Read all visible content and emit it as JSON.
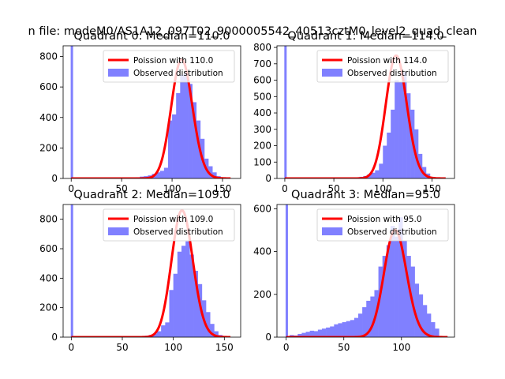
{
  "figure": {
    "suptitle": "n file: modeM0/AS1A12_097T02_9000005542_40513cztM0_level2_quad_clean"
  },
  "colors": {
    "hist": "#8080ff",
    "poisson": "#ff0000",
    "axis": "#000000",
    "background": "#ffffff"
  },
  "chart_data": [
    {
      "type": "bar",
      "title": "Quadrant 0: Median=110.0",
      "xlim": [
        -8,
        168
      ],
      "ylim": [
        0,
        870
      ],
      "xticks": [
        0,
        50,
        100,
        150
      ],
      "yticks": [
        0,
        200,
        400,
        600,
        800
      ],
      "legend": [
        "Poission with 110.0",
        "Observed distribution"
      ],
      "legend_position": "upper-right",
      "bin_width": 4,
      "spike": {
        "x": 0,
        "value": 870
      },
      "bins": [
        [
          60,
          3
        ],
        [
          64,
          8
        ],
        [
          68,
          12
        ],
        [
          72,
          15
        ],
        [
          76,
          20
        ],
        [
          80,
          30
        ],
        [
          84,
          40
        ],
        [
          88,
          50
        ],
        [
          92,
          70
        ],
        [
          96,
          380
        ],
        [
          100,
          420
        ],
        [
          104,
          560
        ],
        [
          108,
          680
        ],
        [
          112,
          690
        ],
        [
          116,
          620
        ],
        [
          120,
          500
        ],
        [
          124,
          380
        ],
        [
          128,
          260
        ],
        [
          132,
          130
        ],
        [
          136,
          80
        ],
        [
          140,
          40
        ],
        [
          144,
          15
        ],
        [
          148,
          5
        ]
      ],
      "poisson_lambda": 110.0,
      "poisson_peak": 780,
      "poisson_xmax": 158
    },
    {
      "type": "bar",
      "title": "Quadrant 1: Median=114.0",
      "xlim": [
        -8,
        173
      ],
      "ylim": [
        0,
        810
      ],
      "xticks": [
        0,
        50,
        100,
        150
      ],
      "yticks": [
        0,
        100,
        200,
        300,
        400,
        500,
        600,
        700,
        800
      ],
      "legend": [
        "Poission with 114.0",
        "Observed distribution"
      ],
      "legend_position": "upper-right",
      "bin_width": 4,
      "spike": {
        "x": 0,
        "value": 810
      },
      "bins": [
        [
          72,
          5
        ],
        [
          76,
          10
        ],
        [
          80,
          15
        ],
        [
          84,
          25
        ],
        [
          88,
          35
        ],
        [
          92,
          50
        ],
        [
          96,
          90
        ],
        [
          100,
          200
        ],
        [
          104,
          280
        ],
        [
          108,
          420
        ],
        [
          112,
          600
        ],
        [
          116,
          590
        ],
        [
          120,
          650
        ],
        [
          124,
          520
        ],
        [
          128,
          420
        ],
        [
          132,
          300
        ],
        [
          136,
          150
        ],
        [
          140,
          70
        ],
        [
          144,
          30
        ],
        [
          148,
          10
        ],
        [
          152,
          5
        ]
      ],
      "poisson_lambda": 114.0,
      "poisson_peak": 750,
      "poisson_xmax": 164
    },
    {
      "type": "bar",
      "title": "Quadrant 2: Median=109.0",
      "xlim": [
        -8,
        166
      ],
      "ylim": [
        0,
        900
      ],
      "xticks": [
        0,
        50,
        100,
        150
      ],
      "yticks": [
        0,
        200,
        400,
        600,
        800
      ],
      "legend": [
        "Poission with 109.0",
        "Observed distribution"
      ],
      "legend_position": "upper-right",
      "bin_width": 4,
      "spike": {
        "x": 0,
        "value": 900
      },
      "bins": [
        [
          64,
          3
        ],
        [
          68,
          5
        ],
        [
          72,
          10
        ],
        [
          76,
          15
        ],
        [
          80,
          25
        ],
        [
          84,
          40
        ],
        [
          88,
          80
        ],
        [
          92,
          100
        ],
        [
          96,
          320
        ],
        [
          100,
          430
        ],
        [
          104,
          580
        ],
        [
          108,
          620
        ],
        [
          112,
          650
        ],
        [
          116,
          560
        ],
        [
          120,
          450
        ],
        [
          124,
          360
        ],
        [
          128,
          250
        ],
        [
          132,
          170
        ],
        [
          136,
          90
        ],
        [
          140,
          40
        ],
        [
          144,
          15
        ],
        [
          148,
          5
        ]
      ],
      "poisson_lambda": 109.0,
      "poisson_peak": 860,
      "poisson_xmax": 156
    },
    {
      "type": "bar",
      "title": "Quadrant 3: Median=95.0",
      "xlim": [
        -8,
        146
      ],
      "ylim": [
        0,
        620
      ],
      "xticks": [
        0,
        50,
        100
      ],
      "yticks": [
        0,
        200,
        400,
        600
      ],
      "legend": [
        "Poission with 95.0",
        "Observed distribution"
      ],
      "legend_position": "upper-right",
      "bin_width": 3.5,
      "spike": {
        "x": 0,
        "value": 620
      },
      "bins": [
        [
          3,
          10
        ],
        [
          6.5,
          8
        ],
        [
          10,
          15
        ],
        [
          13.5,
          20
        ],
        [
          17,
          25
        ],
        [
          20.5,
          30
        ],
        [
          24,
          28
        ],
        [
          27.5,
          35
        ],
        [
          31,
          40
        ],
        [
          34.5,
          45
        ],
        [
          38,
          50
        ],
        [
          41.5,
          60
        ],
        [
          45,
          65
        ],
        [
          48.5,
          70
        ],
        [
          52,
          75
        ],
        [
          55.5,
          80
        ],
        [
          59,
          90
        ],
        [
          62.5,
          110
        ],
        [
          66,
          140
        ],
        [
          69.5,
          170
        ],
        [
          73,
          190
        ],
        [
          76.5,
          220
        ],
        [
          80,
          330
        ],
        [
          83.5,
          380
        ],
        [
          87,
          430
        ],
        [
          90.5,
          520
        ],
        [
          94,
          470
        ],
        [
          97.5,
          560
        ],
        [
          101,
          450
        ],
        [
          104.5,
          380
        ],
        [
          108,
          330
        ],
        [
          111.5,
          250
        ],
        [
          115,
          200
        ],
        [
          118.5,
          150
        ],
        [
          122,
          110
        ],
        [
          125.5,
          70
        ],
        [
          129,
          40
        ]
      ],
      "poisson_lambda": 95.0,
      "poisson_peak": 500,
      "poisson_xmax": 140
    }
  ]
}
